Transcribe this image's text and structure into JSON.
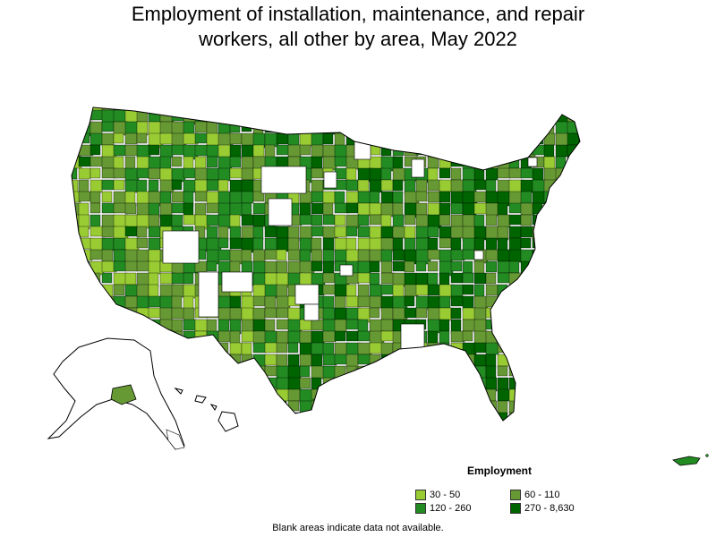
{
  "title": {
    "line1": "Employment of installation, maintenance, and repair",
    "line2": "workers, all other by area, May 2022"
  },
  "legend": {
    "title": "Employment",
    "items": [
      {
        "label": "30 - 50",
        "color": "#99cc33"
      },
      {
        "label": "60 - 110",
        "color": "#669933"
      },
      {
        "label": "120 - 260",
        "color": "#228b22"
      },
      {
        "label": "270 - 8,630",
        "color": "#006400"
      }
    ]
  },
  "note": "Blank areas indicate data not available.",
  "colors": {
    "low": "#99cc33",
    "mid": "#669933",
    "high": "#228b22",
    "top": "#006400",
    "blank": "#ffffff",
    "border": "#000000"
  }
}
